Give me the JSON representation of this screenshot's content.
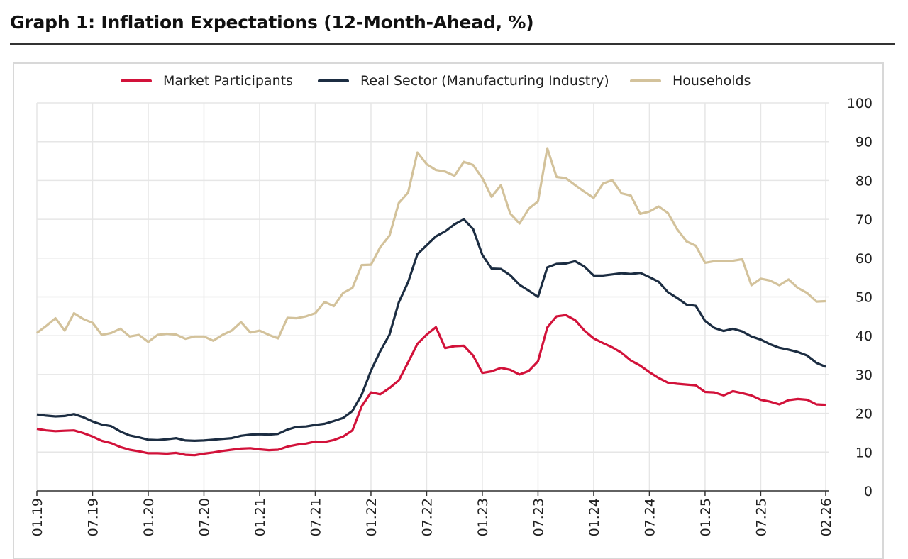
{
  "title": "Graph 1: Inflation Expectations (12-Month-Ahead, %)",
  "chart_data": {
    "type": "line",
    "title": "Graph 1: Inflation Expectations (12-Month-Ahead, %)",
    "xlabel": "",
    "ylabel": "",
    "ylim": [
      0,
      100
    ],
    "yticks": [
      "0",
      "10",
      "20",
      "30",
      "40",
      "50",
      "60",
      "70",
      "80",
      "90",
      "100"
    ],
    "xticks": [
      "01.19",
      "07.19",
      "01.20",
      "07.20",
      "01.21",
      "07.21",
      "01.22",
      "07.22",
      "01.23",
      "07.23",
      "01.24",
      "07.24",
      "01.25",
      "07.25",
      "02.26"
    ],
    "x_range": [
      "01.19",
      "02.26"
    ],
    "frequency": "monthly",
    "grid": true,
    "legend_position": "top",
    "y_axis_side": "right",
    "series": [
      {
        "name": "Market Participants",
        "color": "#d2123a",
        "values": [
          16.0,
          15.6,
          15.4,
          15.5,
          15.6,
          14.9,
          14.0,
          12.9,
          12.3,
          11.3,
          10.6,
          10.2,
          9.7,
          9.7,
          9.6,
          9.8,
          9.3,
          9.2,
          9.6,
          9.9,
          10.3,
          10.6,
          10.9,
          11.0,
          10.7,
          10.5,
          10.6,
          11.4,
          11.9,
          12.2,
          12.7,
          12.6,
          13.1,
          14.0,
          15.6,
          21.8,
          25.4,
          24.9,
          26.5,
          28.5,
          33.1,
          37.9,
          40.3,
          42.2,
          36.8,
          37.3,
          37.4,
          34.9,
          30.4,
          30.8,
          31.7,
          31.2,
          30.0,
          30.9,
          33.4,
          42.1,
          45.0,
          45.3,
          44.0,
          41.3,
          39.3,
          38.1,
          37.0,
          35.6,
          33.6,
          32.3,
          30.6,
          29.1,
          27.9,
          27.6,
          27.4,
          27.2,
          25.5,
          25.4,
          24.6,
          25.7,
          25.2,
          24.6,
          23.5,
          23.0,
          22.3,
          23.4,
          23.7,
          23.5,
          22.3,
          22.2
        ]
      },
      {
        "name": "Real Sector (Manufacturing Industry)",
        "color": "#1c2d42",
        "values": [
          19.7,
          19.4,
          19.2,
          19.3,
          19.8,
          19.0,
          17.9,
          17.1,
          16.7,
          15.3,
          14.3,
          13.8,
          13.2,
          13.1,
          13.3,
          13.6,
          13.0,
          12.9,
          13.0,
          13.2,
          13.4,
          13.6,
          14.2,
          14.5,
          14.6,
          14.5,
          14.7,
          15.8,
          16.5,
          16.6,
          17.0,
          17.3,
          18.0,
          18.8,
          20.6,
          24.8,
          31.0,
          36.0,
          40.3,
          48.6,
          53.8,
          61.0,
          63.3,
          65.6,
          66.9,
          68.7,
          70.0,
          67.5,
          60.8,
          57.3,
          57.2,
          55.6,
          53.1,
          51.6,
          50.0,
          57.6,
          58.5,
          58.6,
          59.2,
          57.8,
          55.5,
          55.5,
          55.8,
          56.1,
          55.9,
          56.2,
          55.1,
          53.9,
          51.2,
          49.7,
          48.0,
          47.7,
          43.8,
          42.0,
          41.2,
          41.8,
          41.1,
          39.8,
          39.0,
          37.8,
          36.9,
          36.4,
          35.8,
          34.9,
          33.0,
          32.0
        ]
      },
      {
        "name": "Households",
        "color": "#d3c29b",
        "values": [
          40.7,
          42.5,
          44.5,
          41.3,
          45.8,
          44.3,
          43.3,
          40.2,
          40.7,
          41.8,
          39.8,
          40.2,
          38.4,
          40.2,
          40.5,
          40.3,
          39.2,
          39.8,
          39.8,
          38.7,
          40.2,
          41.3,
          43.5,
          40.8,
          41.3,
          40.2,
          39.3,
          44.6,
          44.5,
          45.0,
          45.8,
          48.7,
          47.6,
          51.0,
          52.3,
          58.2,
          58.3,
          62.8,
          65.8,
          74.2,
          76.9,
          87.2,
          84.2,
          82.7,
          82.3,
          81.2,
          84.8,
          84.0,
          80.6,
          75.8,
          78.8,
          71.5,
          68.9,
          72.7,
          74.6,
          88.3,
          80.9,
          80.6,
          78.8,
          77.1,
          75.5,
          79.2,
          80.1,
          76.7,
          76.1,
          71.4,
          72.0,
          73.3,
          71.6,
          67.4,
          64.3,
          63.2,
          58.8,
          59.2,
          59.3,
          59.3,
          59.7,
          53.0,
          54.7,
          54.2,
          53.0,
          54.5,
          52.3,
          51.0,
          48.8,
          48.9
        ]
      }
    ]
  }
}
